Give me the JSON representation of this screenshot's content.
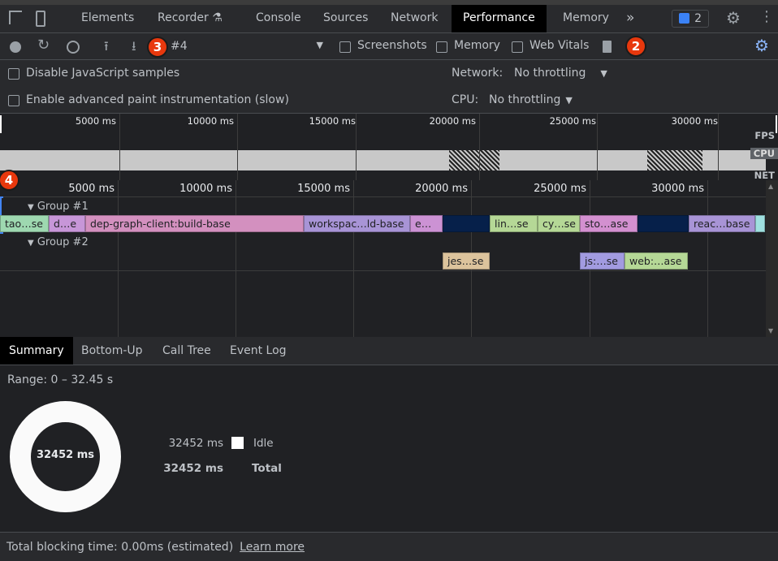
{
  "tabs": {
    "items": [
      "Elements",
      "Recorder",
      "Console",
      "Sources",
      "Network",
      "Performance",
      "Memory"
    ],
    "active": "Performance",
    "more": "»",
    "issues_count": "2"
  },
  "toolbar": {
    "recording_select": "#4",
    "screenshots": "Screenshots",
    "memory": "Memory",
    "web_vitals": "Web Vitals"
  },
  "settings": {
    "disable_js": "Disable JavaScript samples",
    "adv_paint": "Enable advanced paint instrumentation (slow)",
    "network_label": "Network:",
    "network_value": "No throttling",
    "cpu_label": "CPU:",
    "cpu_value": "No throttling"
  },
  "overview": {
    "ticks": [
      "5000 ms",
      "10000 ms",
      "15000 ms",
      "20000 ms",
      "25000 ms",
      "30000 ms"
    ],
    "tracks": [
      "FPS",
      "CPU",
      "NET"
    ]
  },
  "flame": {
    "ticks": [
      "5000 ms",
      "10000 ms",
      "15000 ms",
      "20000 ms",
      "25000 ms",
      "30000 ms"
    ],
    "groups": [
      {
        "label": "Group #1",
        "bars": [
          {
            "label": "tao…se",
            "color": "#9ed8b0"
          },
          {
            "label": "d…e",
            "color": "#c796d8"
          },
          {
            "label": "dep-graph-client:build-base",
            "color": "#d390bf"
          },
          {
            "label": "workspac…ld-base",
            "color": "#a894d6"
          },
          {
            "label": "e…",
            "color": "#cc92d4"
          },
          {
            "label": "",
            "color": "#06204a"
          },
          {
            "label": "lin…se",
            "color": "#b5d896"
          },
          {
            "label": "cy…se",
            "color": "#b5d896"
          },
          {
            "label": "sto…ase",
            "color": "#d390d0"
          },
          {
            "label": "",
            "color": "#06204a"
          },
          {
            "label": "reac…base",
            "color": "#a894d6"
          },
          {
            "label": "",
            "color": "#9fe0e0"
          }
        ]
      },
      {
        "label": "Group #2",
        "bars": [
          {
            "label": "jes…se",
            "color": "#dcc39c"
          },
          {
            "label": "js:…se",
            "color": "#a29be0"
          },
          {
            "label": "web:…ase",
            "color": "#b5d896"
          }
        ]
      }
    ]
  },
  "bottom_tabs": {
    "items": [
      "Summary",
      "Bottom-Up",
      "Call Tree",
      "Event Log"
    ],
    "active": "Summary"
  },
  "summary": {
    "range": "Range: 0 – 32.45 s",
    "donut_center": "32452 ms",
    "rows": [
      {
        "value": "32452 ms",
        "label": "Idle",
        "color": "#ffffff"
      },
      {
        "value": "32452 ms",
        "label": "Total"
      }
    ]
  },
  "footer": {
    "text": "Total blocking time: 0.00ms (estimated)",
    "link": "Learn more"
  },
  "annotations": [
    "2",
    "3",
    "4"
  ]
}
